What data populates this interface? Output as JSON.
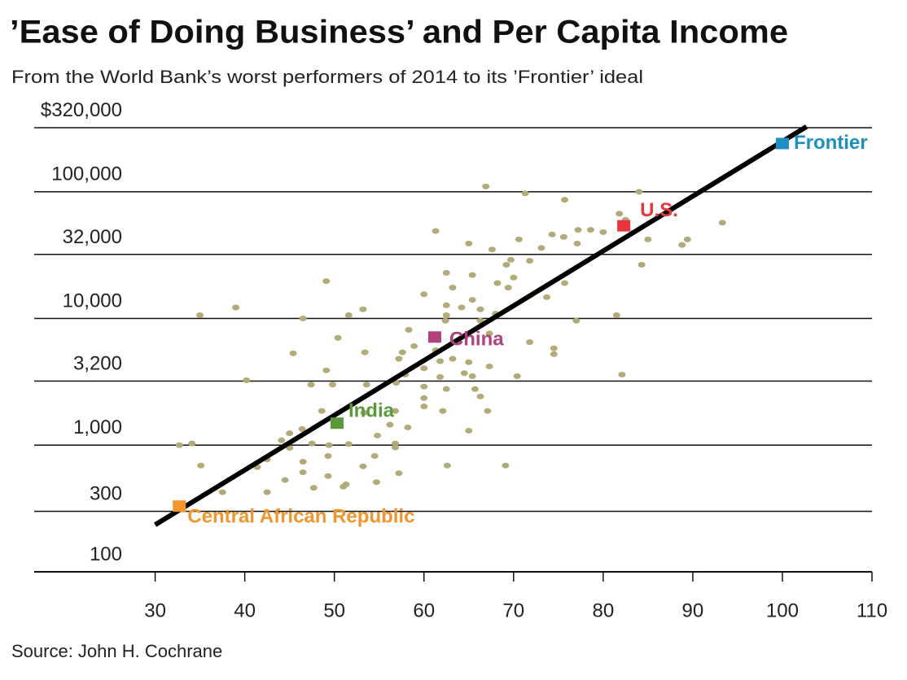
{
  "chart_data": {
    "type": "scatter",
    "title": "’Ease of Doing Business’ and Per Capita Income",
    "subtitle": "From the World Bank’s worst performers of 2014 to its ’Frontier’ ideal",
    "source": "Source: John H. Cochrane",
    "log_y": true,
    "grid": true,
    "xlim": [
      16.5,
      110
    ],
    "xticks": [
      30,
      40,
      50,
      60,
      70,
      80,
      90,
      100,
      110
    ],
    "ylim": [
      100,
      320000
    ],
    "yticks": [
      {
        "value": 320000,
        "label": "$320,000"
      },
      {
        "value": 100000,
        "label": "100,000"
      },
      {
        "value": 32000,
        "label": "32,000"
      },
      {
        "value": 10000,
        "label": "10,000"
      },
      {
        "value": 3200,
        "label": "3,200"
      },
      {
        "value": 1000,
        "label": "1,000"
      },
      300,
      100
    ],
    "dots": {
      "color": "#b3ab76",
      "x": [
        66.9,
        71.3,
        75.7,
        84,
        81.8,
        82.5,
        93.3,
        61.3,
        74.3,
        75.6,
        78.6,
        77.2,
        80,
        70.6,
        65,
        67.6,
        73.1,
        77.1,
        85,
        89.4,
        88.8,
        69.7,
        71.8,
        69.2,
        84.3,
        62.5,
        65.4,
        70,
        68.2,
        49.1,
        63.2,
        60,
        75.7,
        69.4,
        73.7,
        62.5,
        65.4,
        66.3,
        64.2,
        39,
        35,
        46.5,
        51.6,
        53.2,
        62.5,
        68,
        81.5,
        77,
        62.4,
        66.3,
        58.3,
        50.4,
        67.3,
        71.8,
        58.9,
        57.6,
        45.4,
        53.4,
        61.3,
        74.5,
        74.5,
        61.8,
        63.2,
        57.2,
        65,
        67.3,
        49.1,
        60,
        64.5,
        61.8,
        57.9,
        65.4,
        70.4,
        82.1,
        40.2,
        47.4,
        49.8,
        56.9,
        53.6,
        60,
        62.5,
        65.7,
        60,
        66.3,
        67.1,
        62.1,
        60,
        56.8,
        53.3,
        48.6,
        56.2,
        58.2,
        65,
        54.8,
        46.4,
        45,
        44.1,
        47.5,
        49.4,
        51.6,
        56.8,
        34.1,
        32.7,
        45,
        42.5,
        46.5,
        49.3,
        54.5,
        56.8,
        53.2,
        35.1,
        41.4,
        62.6,
        69.1,
        46.5,
        49.3,
        57.2,
        44.5,
        51,
        54.7,
        47.7,
        42.5,
        37.5,
        51.3
      ],
      "values": [
        110000,
        97000,
        86300,
        100000,
        67000,
        60000,
        57000,
        49000,
        46000,
        44000,
        50000,
        50000,
        48000,
        42000,
        39000,
        35000,
        36000,
        39000,
        42000,
        42000,
        38000,
        29000,
        28500,
        26500,
        26500,
        22900,
        22000,
        21000,
        19000,
        19700,
        17500,
        15500,
        19000,
        17500,
        14700,
        12700,
        14000,
        11800,
        12200,
        12200,
        10600,
        10000,
        10600,
        11800,
        10600,
        10900,
        10600,
        9600,
        9600,
        9600,
        8130,
        7020,
        7600,
        6500,
        6050,
        5400,
        5300,
        5400,
        5600,
        5800,
        5220,
        4600,
        4800,
        4800,
        4510,
        4180,
        3890,
        4040,
        3700,
        3450,
        3600,
        3500,
        3500,
        3600,
        3250,
        3000,
        3000,
        3100,
        3000,
        2900,
        2770,
        2770,
        2350,
        2420,
        1860,
        1860,
        2020,
        1860,
        1800,
        1860,
        1450,
        1380,
        1300,
        1190,
        1340,
        1240,
        1090,
        1030,
        1000,
        1020,
        1030,
        1030,
        1000,
        950,
        770,
        740,
        820,
        820,
        960,
        680,
        690,
        670,
        690,
        690,
        610,
        570,
        600,
        530,
        470,
        510,
        460,
        425,
        425,
        490
      ]
    },
    "trend": {
      "color": "#000000",
      "x": [
        30,
        102.7
      ],
      "values": [
        235,
        326000
      ]
    },
    "series": [
      {
        "name": "Frontier",
        "color": "#1b8fc1",
        "x": [
          100
        ],
        "values": [
          240000
        ]
      },
      {
        "name": "U.S.",
        "color": "#e8363c",
        "x": [
          82.3
        ],
        "values": [
          53800
        ]
      },
      {
        "name": "China",
        "color": "#b23f7e",
        "x": [
          61.2
        ],
        "values": [
          7130
        ]
      },
      {
        "name": "India",
        "color": "#5b9a3b",
        "x": [
          50.3
        ],
        "values": [
          1490
        ]
      },
      {
        "name": "Central African Republic",
        "color": "#f0962c",
        "x": [
          32.7
        ],
        "values": [
          330
        ]
      }
    ]
  }
}
